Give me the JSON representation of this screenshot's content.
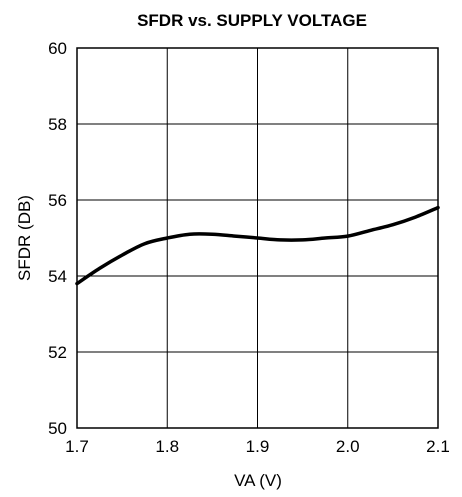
{
  "chart_data": {
    "type": "line",
    "title": "SFDR vs. SUPPLY VOLTAGE",
    "xlabel": "VA (V)",
    "ylabel": "SFDR (DB)",
    "xlim": [
      1.7,
      2.1
    ],
    "ylim": [
      50,
      60
    ],
    "x_ticks": [
      "1.7",
      "1.8",
      "1.9",
      "2.0",
      "2.1"
    ],
    "y_ticks": [
      "50",
      "52",
      "54",
      "56",
      "58",
      "60"
    ],
    "grid": true,
    "series": [
      {
        "x": [
          1.7,
          1.725,
          1.75,
          1.775,
          1.8,
          1.825,
          1.85,
          1.875,
          1.9,
          1.925,
          1.95,
          1.975,
          2.0,
          2.025,
          2.05,
          2.075,
          2.1
        ],
        "y": [
          53.8,
          54.2,
          54.55,
          54.85,
          55.0,
          55.1,
          55.1,
          55.05,
          55.0,
          54.95,
          54.95,
          55.0,
          55.05,
          55.2,
          55.35,
          55.55,
          55.8
        ]
      }
    ]
  }
}
